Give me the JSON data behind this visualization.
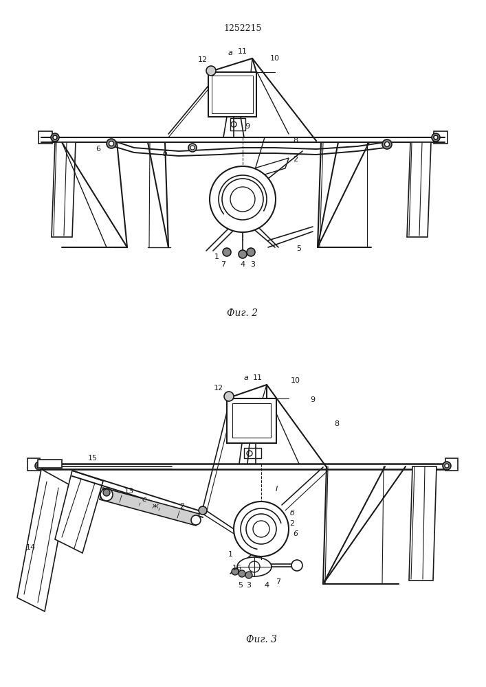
{
  "title": "1252215",
  "fig2_label": "Фиг. 2",
  "fig3_label": "Фиг. 3",
  "bg_color": "#ffffff",
  "line_color": "#1a1a1a",
  "lw": 1.0,
  "fig_width": 7.07,
  "fig_height": 10.0,
  "dpi": 100
}
